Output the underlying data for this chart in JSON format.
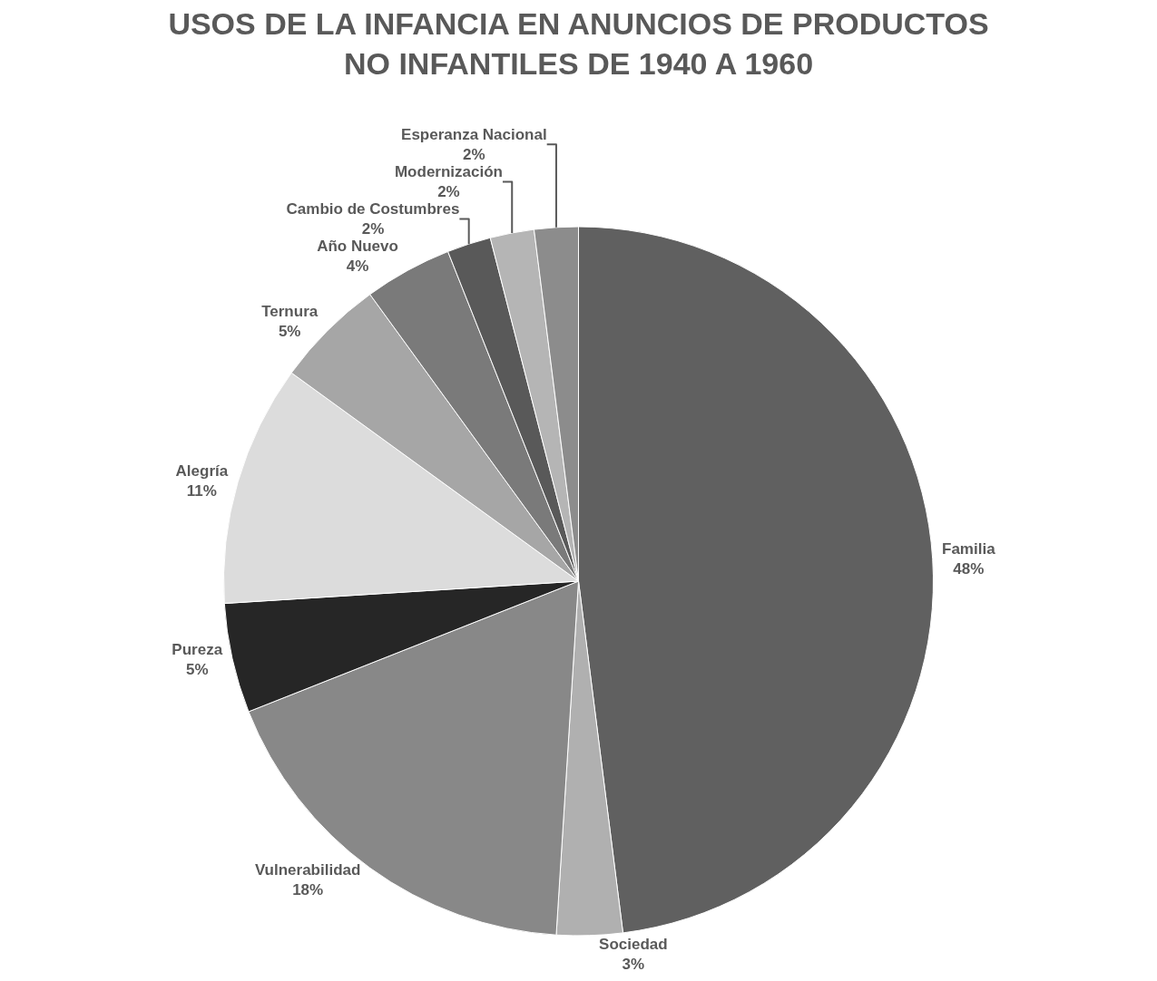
{
  "chart_data": {
    "type": "pie",
    "title": "USOS DE LA INFANCIA EN ANUNCIOS DE PRODUCTOS NO INFANTILES DE 1940 A 1960",
    "categories": [
      "Familia",
      "Sociedad",
      "Vulnerabilidad",
      "Pureza",
      "Alegría",
      "Ternura",
      "Año Nuevo",
      "Cambio de Costumbres",
      "Modernización",
      "Esperanza Nacional"
    ],
    "values": [
      48,
      3,
      18,
      5,
      11,
      5,
      4,
      2,
      2,
      2
    ],
    "value_labels": [
      "48%",
      "3%",
      "18%",
      "5%",
      "11%",
      "5%",
      "4%",
      "2%",
      "2%",
      "2%"
    ],
    "colors": [
      "#606060",
      "#b0b0b0",
      "#888888",
      "#262626",
      "#dcdcdc",
      "#a6a6a6",
      "#7a7a7a",
      "#595959",
      "#b5b5b5",
      "#8c8c8c"
    ],
    "legend": false
  }
}
